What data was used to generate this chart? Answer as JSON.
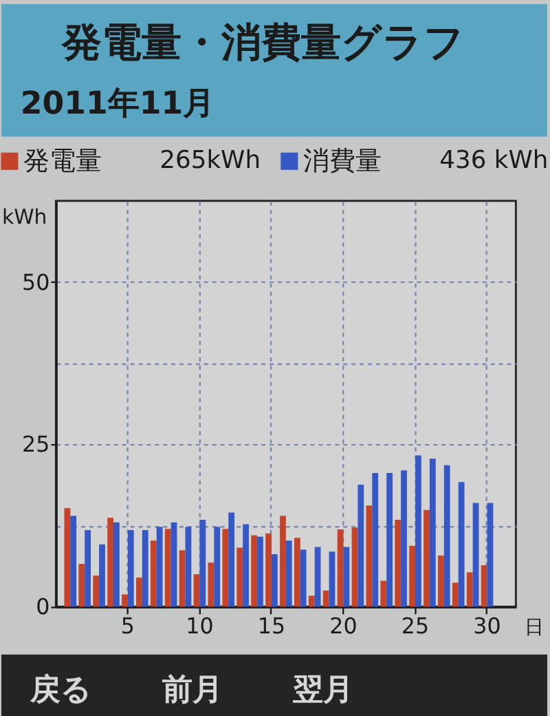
{
  "chart_data": {
    "type": "bar",
    "title": "発電量・消費量グラフ",
    "subtitle": "2011年11月",
    "xlabel": "日",
    "ylabel": "kWh",
    "categories": [
      null,
      null,
      null,
      null,
      "5",
      null,
      null,
      null,
      null,
      "10",
      null,
      null,
      null,
      null,
      "15",
      null,
      null,
      null,
      null,
      "20",
      null,
      null,
      null,
      null,
      "25",
      null,
      null,
      null,
      null,
      "30"
    ],
    "series": [
      {
        "name": "発電量",
        "color": "#c4432b",
        "values": [
          15.2,
          6.6,
          4.8,
          13.7,
          1.9,
          4.5,
          10.2,
          12.0,
          8.7,
          5.0,
          6.8,
          12.0,
          9.1,
          11.0,
          11.3,
          14.0,
          10.6,
          1.7,
          2.5,
          11.9,
          12.2,
          15.6,
          4.0,
          13.4,
          9.4,
          14.9,
          7.9,
          3.7,
          5.3,
          6.4
        ]
      },
      {
        "name": "消費量",
        "color": "#3558c4",
        "values": [
          14.0,
          11.8,
          9.6,
          13.0,
          11.8,
          11.8,
          12.3,
          13.0,
          12.3,
          13.4,
          12.3,
          14.5,
          12.7,
          10.8,
          8.1,
          10.2,
          8.8,
          9.2,
          8.5,
          9.2,
          18.8,
          20.6,
          20.6,
          21.0,
          23.3,
          22.8,
          21.8,
          19.2,
          16.0,
          16.0
        ]
      }
    ],
    "ylim": [
      0,
      62.5
    ],
    "yticks": [
      0,
      {
        "value": 12.5,
        "label": null
      },
      25,
      {
        "value": 37.5,
        "label": null
      },
      50
    ],
    "grid": true,
    "legend": "top",
    "annotations": [
      "265kWh",
      "436 kWh",
      "戻る",
      "前月",
      "翌月"
    ]
  }
}
